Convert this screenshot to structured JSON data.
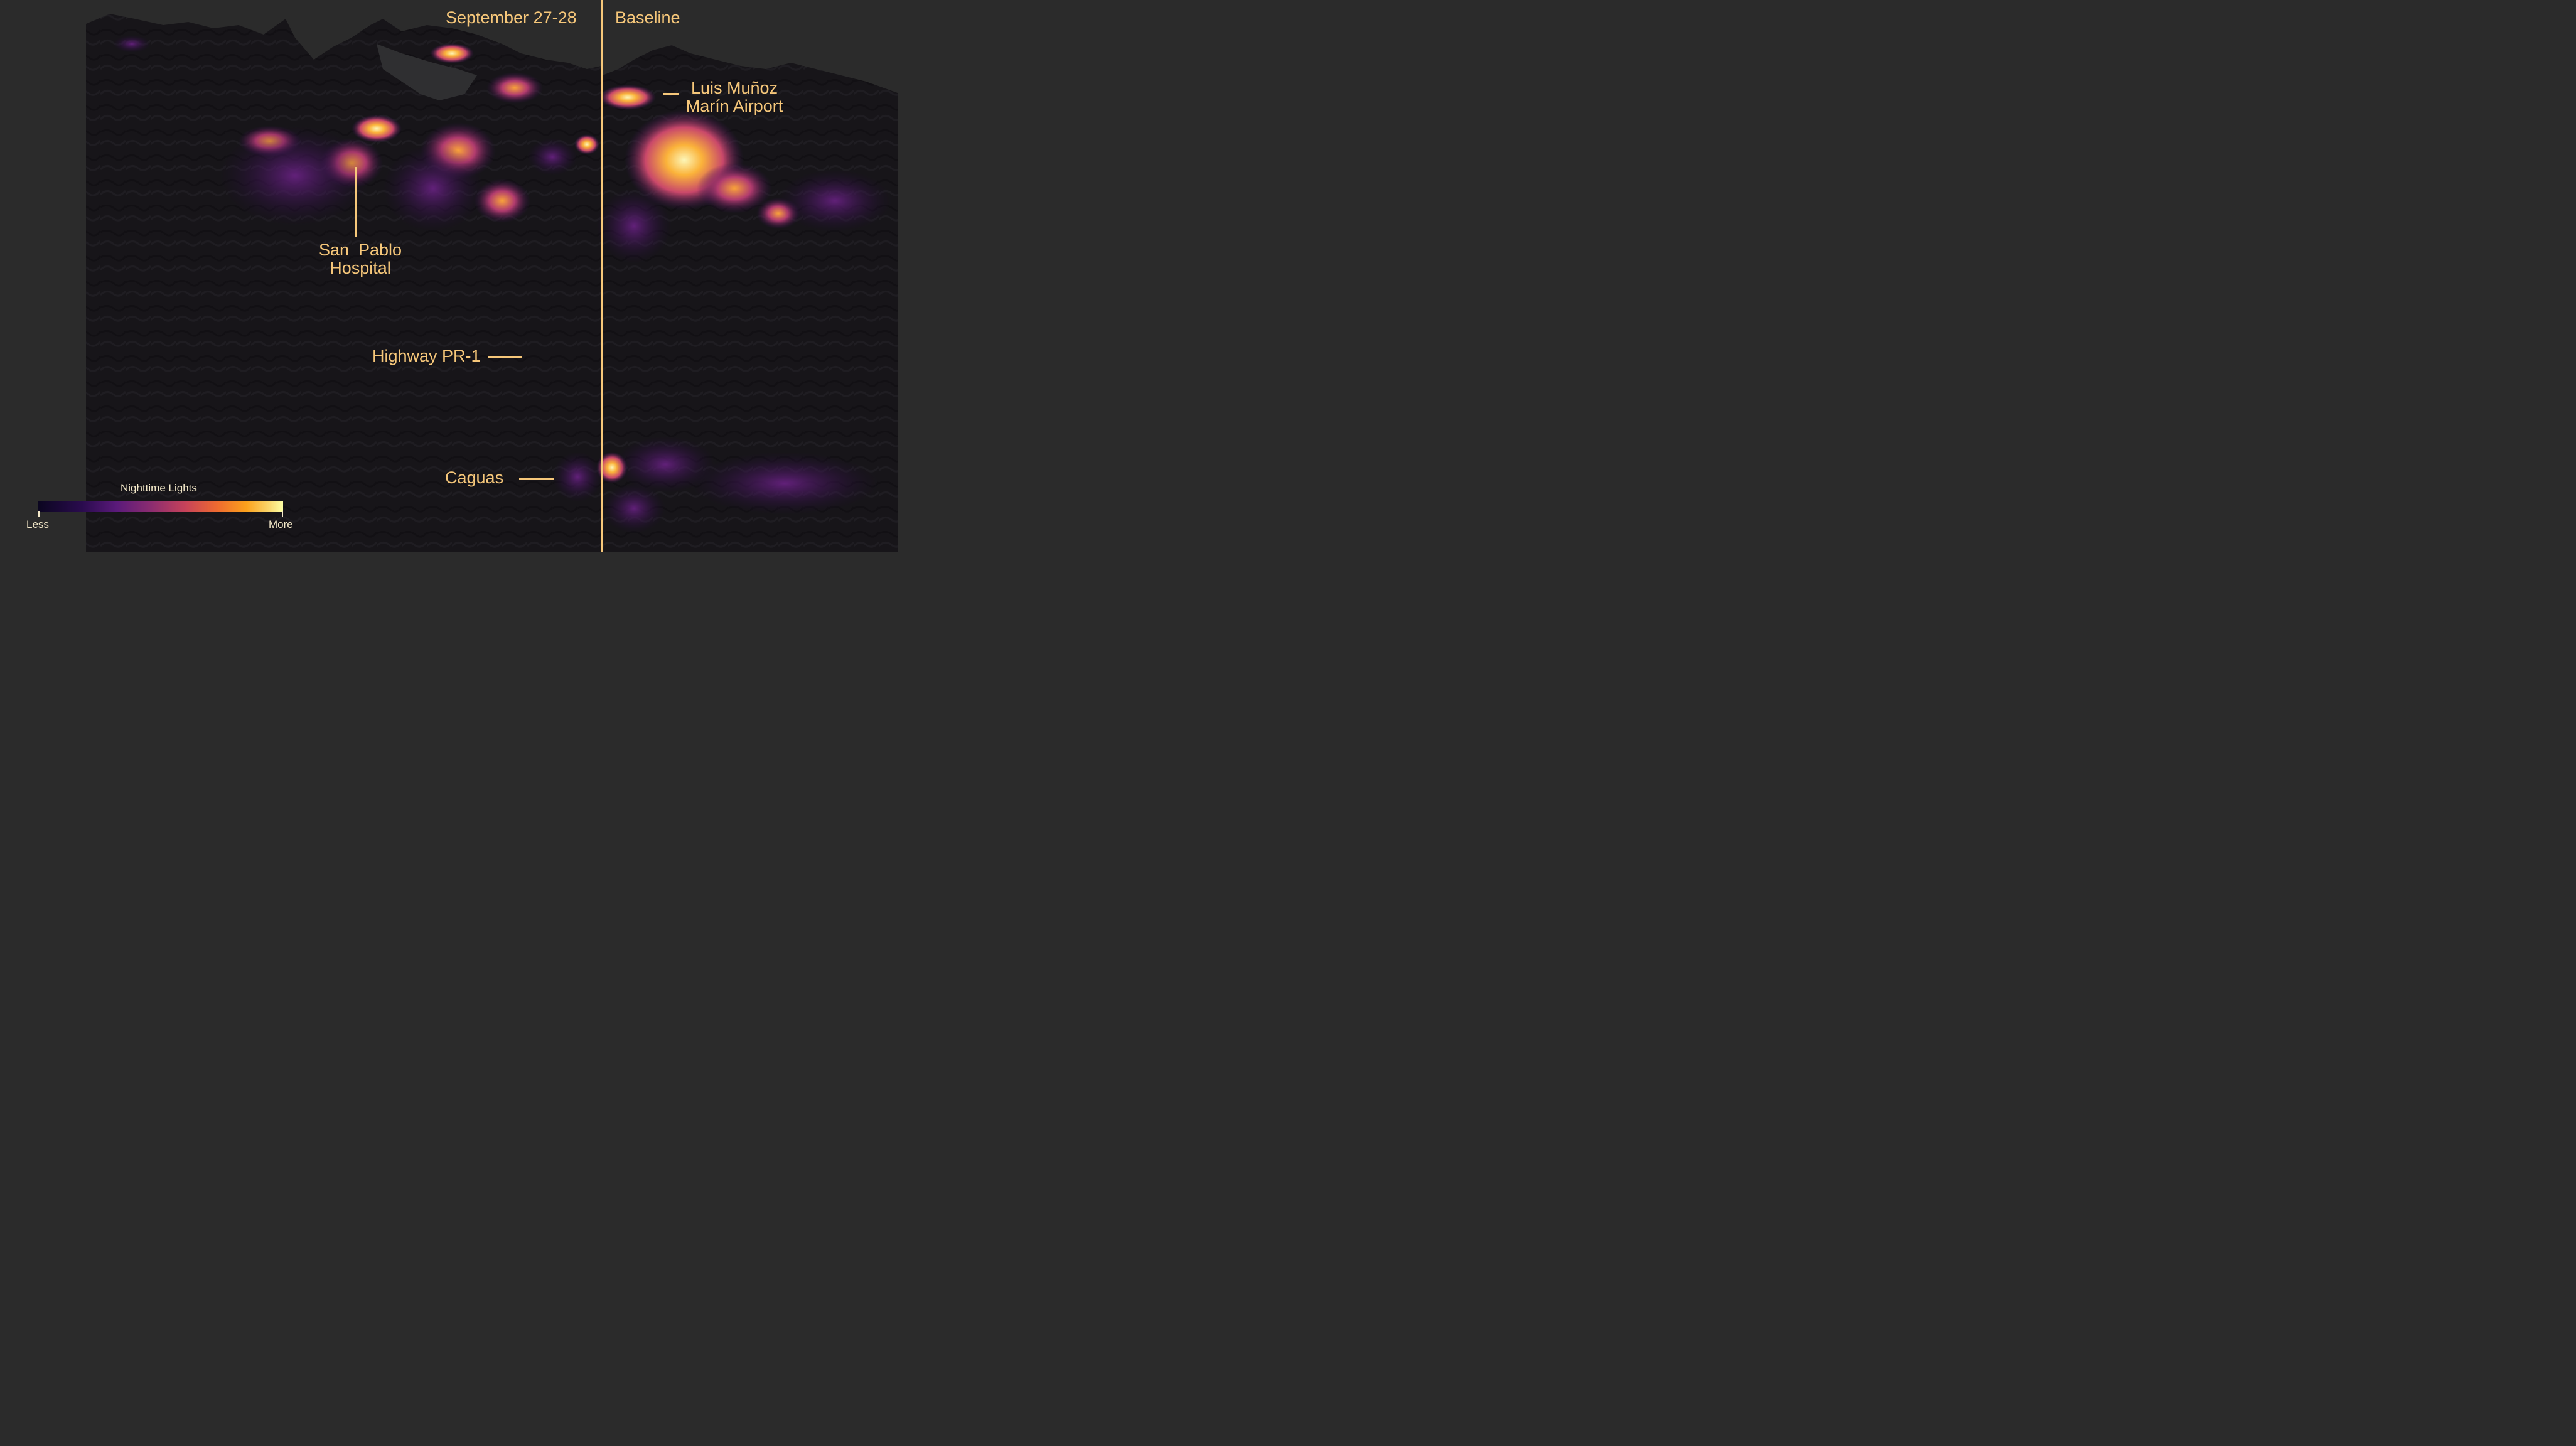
{
  "panels": {
    "left_title": "September 27-28",
    "right_title": "Baseline"
  },
  "annotations": {
    "airport": [
      "Luis Muñoz",
      "Marín Airport"
    ],
    "hospital": [
      "San  Pablo",
      "Hospital"
    ],
    "highway": "Highway PR-1",
    "caguas": "Caguas"
  },
  "legend": {
    "title": "Nighttime Lights",
    "low_label": "Less",
    "high_label": "More",
    "gradient_colors": [
      "#0b0620",
      "#2a0b4e",
      "#5a1a7a",
      "#8b2c70",
      "#c6425a",
      "#ee6a30",
      "#fba11c",
      "#fad56a",
      "#fcffa4"
    ]
  },
  "colors": {
    "background": "#2b2b2b",
    "land": "#161418",
    "ocean": "#2f2f31",
    "annotation": "#f6c77a"
  }
}
